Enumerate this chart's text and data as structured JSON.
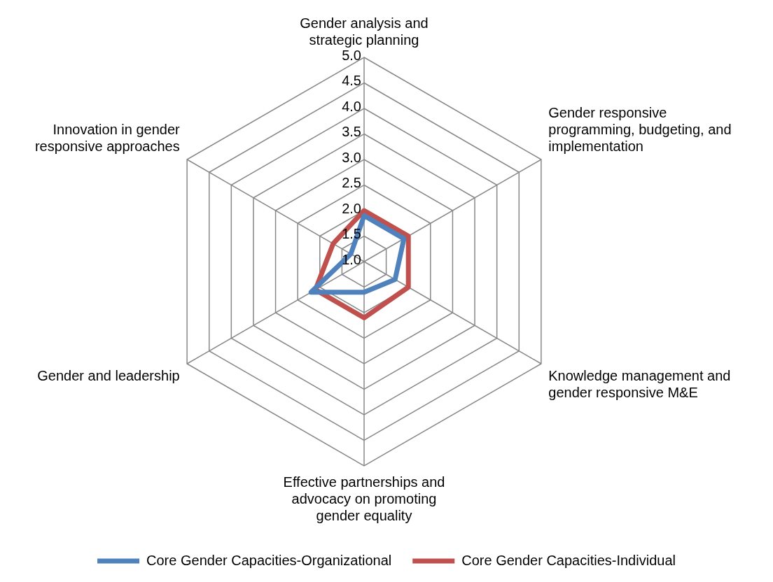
{
  "chart_data": {
    "type": "radar",
    "categories": [
      "Gender analysis and strategic planning",
      "Gender responsive programming, budgeting, and implementation",
      "Knowledge management and gender responsive M&E",
      "Effective partnerships and advocacy on promoting gender equality",
      "Gender and leadership",
      "Innovation in gender responsive approaches"
    ],
    "series": [
      {
        "name": "Core Gender Capacities-Organizational",
        "color": "#4f81bd",
        "values": [
          1.9,
          1.9,
          1.7,
          1.6,
          2.2,
          1.3
        ]
      },
      {
        "name": "Core Gender Capacities-Individual",
        "color": "#c0504d",
        "values": [
          2.0,
          2.0,
          2.0,
          2.1,
          2.1,
          1.7
        ]
      }
    ],
    "ylim": [
      1,
      5
    ],
    "yticks": [
      {
        "value": 1,
        "label": "1.0"
      },
      {
        "value": 1.5,
        "label": "1.5"
      },
      {
        "value": 2,
        "label": "2.0"
      },
      {
        "value": 2.5,
        "label": "2.5"
      },
      {
        "value": 3,
        "label": "3.0"
      },
      {
        "value": 3.5,
        "label": "3.5"
      },
      {
        "value": 4,
        "label": "4.0"
      },
      {
        "value": 4.5,
        "label": "4.5"
      },
      {
        "value": 5,
        "label": "5.0"
      }
    ],
    "grid": true,
    "legend": "bottom",
    "marker": "none",
    "line_style": "solid"
  }
}
